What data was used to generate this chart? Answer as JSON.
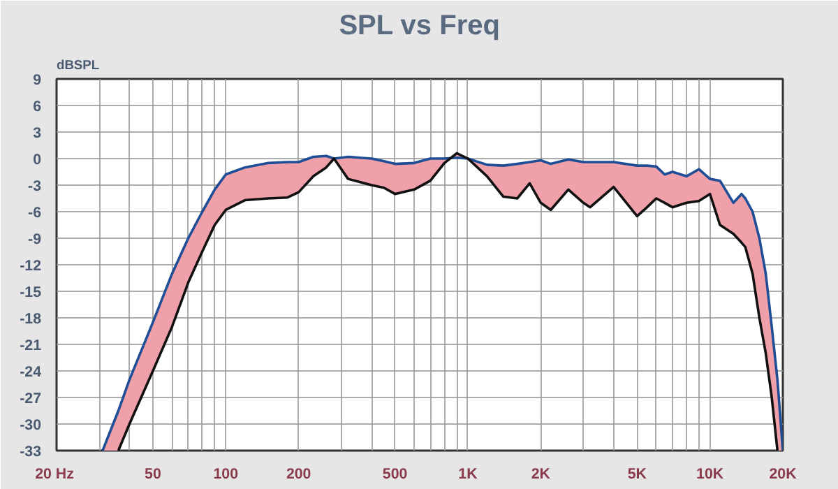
{
  "chart_data": {
    "type": "line",
    "title": "SPL vs Freq",
    "ylabel": "dBSPL",
    "log": "x",
    "grid": true,
    "xlim": [
      20,
      20000
    ],
    "ylim": [
      -33,
      9
    ],
    "xticks": [
      {
        "value": 20,
        "label": "20  Hz"
      },
      {
        "value": 30,
        "label": null
      },
      {
        "value": 40,
        "label": null
      },
      50,
      {
        "value": 60,
        "label": null
      },
      {
        "value": 70,
        "label": null
      },
      {
        "value": 80,
        "label": null
      },
      {
        "value": 90,
        "label": null
      },
      100,
      200,
      {
        "value": 300,
        "label": null
      },
      {
        "value": 400,
        "label": null
      },
      500,
      {
        "value": 600,
        "label": null
      },
      {
        "value": 700,
        "label": null
      },
      {
        "value": 800,
        "label": null
      },
      {
        "value": 900,
        "label": null
      },
      {
        "value": 1000,
        "label": "1K"
      },
      {
        "value": 2000,
        "label": "2K"
      },
      {
        "value": 3000,
        "label": null
      },
      {
        "value": 4000,
        "label": null
      },
      {
        "value": 5000,
        "label": "5K"
      },
      {
        "value": 6000,
        "label": null
      },
      {
        "value": 7000,
        "label": null
      },
      {
        "value": 8000,
        "label": null
      },
      {
        "value": 9000,
        "label": null
      },
      {
        "value": 10000,
        "label": "10K"
      },
      {
        "value": 20000,
        "label": "20K"
      }
    ],
    "yticks": [
      -33,
      -30,
      -27,
      -24,
      -21,
      -18,
      -15,
      -12,
      -9,
      -6,
      -3,
      0,
      3,
      6,
      9
    ],
    "x": [
      31,
      36,
      40,
      50,
      60,
      70,
      80,
      90,
      100,
      120,
      150,
      180,
      200,
      230,
      260,
      280,
      320,
      400,
      450,
      500,
      600,
      700,
      800,
      900,
      1000,
      1200,
      1400,
      1600,
      1800,
      2000,
      2200,
      2600,
      3000,
      3200,
      4000,
      5000,
      5500,
      6000,
      6500,
      7000,
      8000,
      9000,
      10000,
      11000,
      12500,
      13500,
      14000,
      15000,
      16000,
      17000,
      18000,
      19000,
      20000
    ],
    "series": [
      {
        "color": "#1f4e96",
        "values": [
          -33,
          -28.5,
          -25,
          -18.5,
          -13,
          -9,
          -6,
          -3.5,
          -1.8,
          -1,
          -0.5,
          -0.4,
          -0.4,
          0.2,
          0.3,
          0,
          0.2,
          0,
          -0.3,
          -0.6,
          -0.5,
          0,
          0,
          0.1,
          0,
          -0.7,
          -0.8,
          -0.6,
          -0.4,
          -0.2,
          -0.6,
          -0.1,
          -0.4,
          -0.4,
          -0.4,
          -0.8,
          -0.8,
          -0.9,
          -1.8,
          -1.5,
          -2,
          -1.2,
          -2.3,
          -2.5,
          -5,
          -4,
          -4.5,
          -6,
          -9,
          -13,
          -19,
          -25,
          -33
        ],
        "upper": [
          -33,
          -28.5,
          -25,
          -18.5,
          -13,
          -9,
          -6,
          -3.5,
          -1.8,
          -1,
          -0.5,
          -0.4,
          -0.4,
          0.2,
          0.3,
          0,
          0.2,
          0,
          -0.3,
          -0.6,
          -0.5,
          0,
          0,
          0.1,
          0,
          -0.7,
          -0.8,
          -0.6,
          -0.4,
          -0.2,
          -0.6,
          -0.1,
          -0.4,
          -0.4,
          -0.4,
          -0.8,
          -0.8,
          -0.9,
          -1.8,
          -1.5,
          -2,
          -1.2,
          -2.3,
          -2.5,
          -5,
          -4,
          -4.5,
          -6,
          -9,
          -13,
          -19,
          -25,
          -33
        ],
        "lower": [
          -33,
          -33,
          -30,
          -24,
          -19,
          -14,
          -10.5,
          -7.5,
          -5.8,
          -4.7,
          -4.5,
          -4.4,
          -3.8,
          -2,
          -1,
          0,
          -2.3,
          -3,
          -3.3,
          -4,
          -3.5,
          -2.5,
          -0.5,
          0.6,
          0,
          -2,
          -4.3,
          -4.5,
          -2.8,
          -5,
          -5.8,
          -3.5,
          -5,
          -5.5,
          -3.2,
          -6.5,
          -5.5,
          -4.5,
          -5,
          -5.5,
          -5,
          -4.8,
          -4,
          -7.5,
          -8.5,
          -9.5,
          -10,
          -13,
          -18,
          -22,
          -27,
          -33,
          -33
        ]
      },
      {
        "color": "#111111",
        "values": [
          null,
          -33,
          -30,
          -24,
          -19,
          -14,
          -10.5,
          -7.5,
          -5.8,
          -4.7,
          -4.5,
          -4.4,
          -3.8,
          -2,
          -1,
          0,
          -2.3,
          -3,
          -3.3,
          -4,
          -3.5,
          -2.5,
          -0.5,
          0.6,
          0,
          -2,
          -4.3,
          -4.5,
          -2.8,
          -5,
          -5.8,
          -3.5,
          -5,
          -5.5,
          -3.2,
          -6.5,
          -5.5,
          -4.5,
          -5,
          -5.5,
          -5,
          -4.8,
          -4,
          -7.5,
          -8.5,
          -9.5,
          -10,
          -13,
          -18,
          -22,
          -27,
          -33,
          null
        ]
      }
    ]
  }
}
